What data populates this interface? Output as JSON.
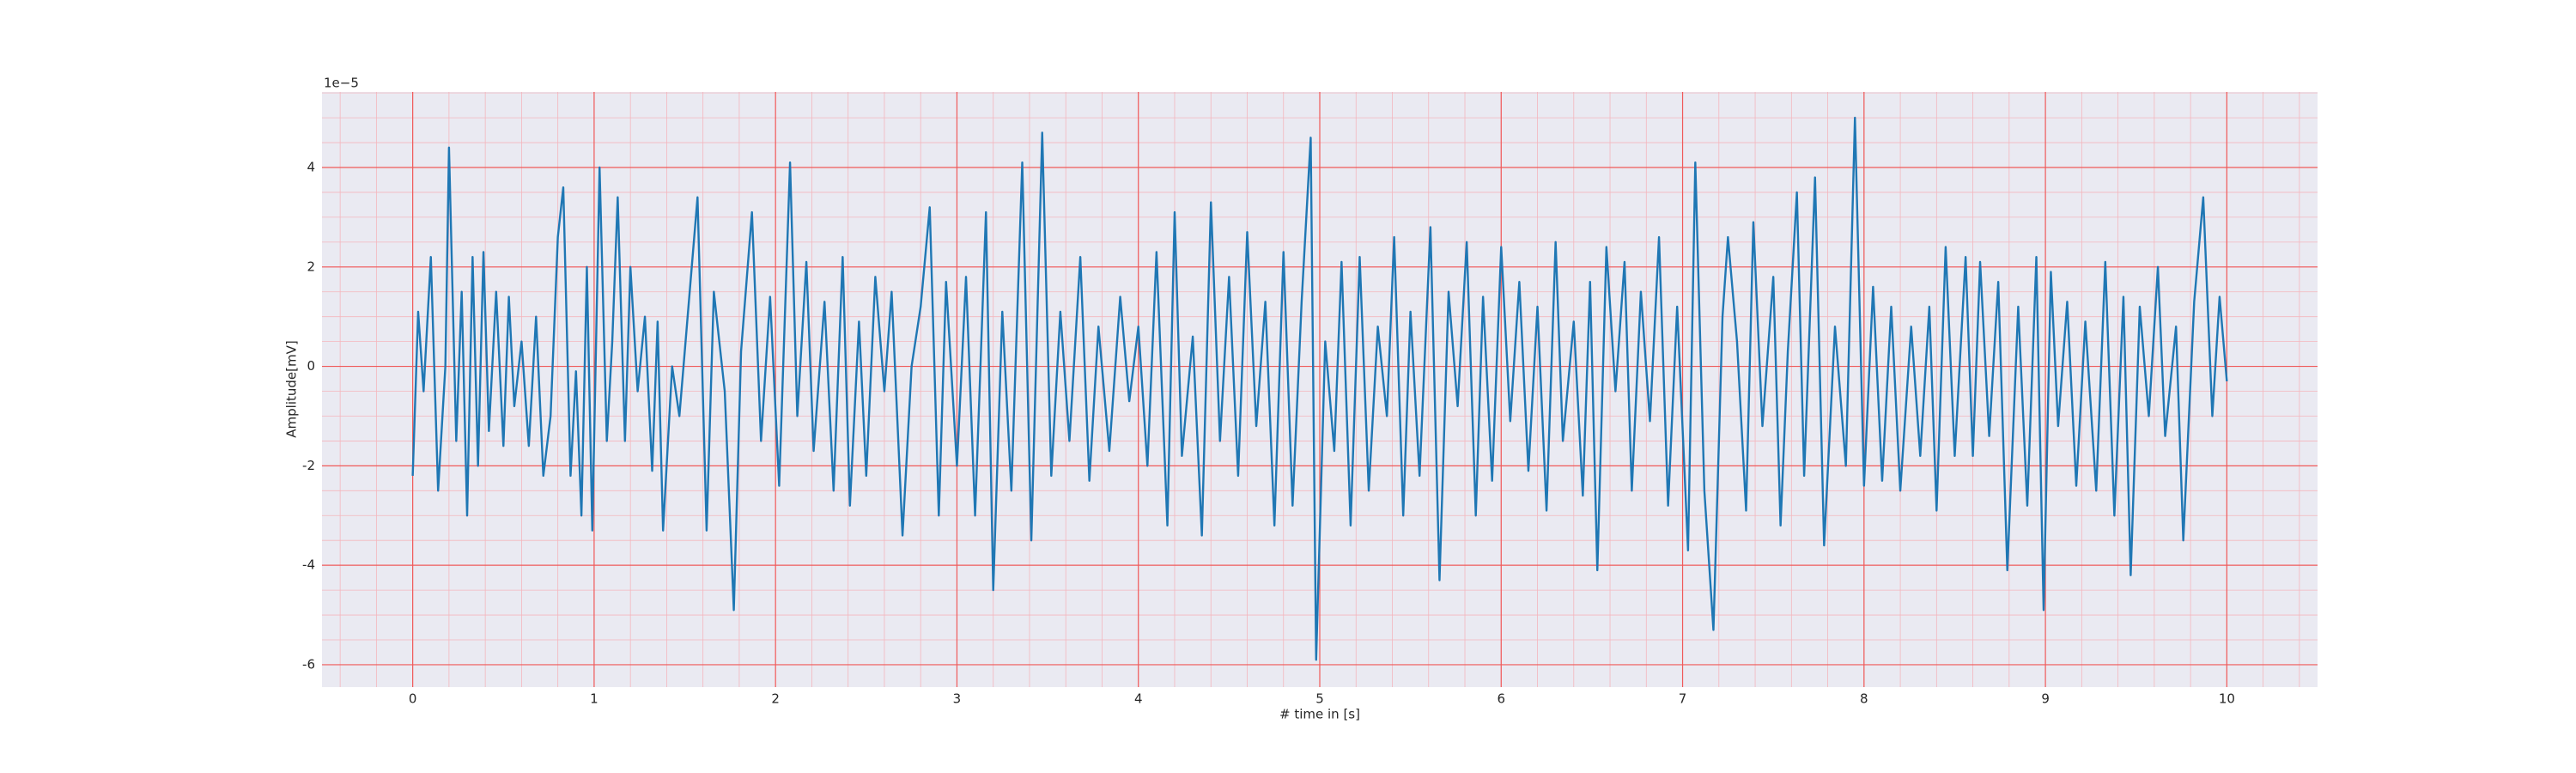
{
  "chart_data": {
    "type": "line",
    "xlabel": "# time in [s]",
    "ylabel": "Amplitude[mV]",
    "y_offset_label": "1e−5",
    "xlim": [
      -0.5,
      10.5
    ],
    "ylim": [
      -6.45,
      5.52
    ],
    "xticks": [
      0,
      1,
      2,
      3,
      4,
      5,
      6,
      7,
      8,
      9,
      10
    ],
    "yticks": [
      -6,
      -4,
      -2,
      0,
      2,
      4
    ],
    "grid": true,
    "minor_grid": true,
    "series": [
      {
        "color": "#1f77b4",
        "x": [
          0,
          0.03,
          0.06,
          0.1,
          0.14,
          0.18,
          0.2,
          0.24,
          0.27,
          0.3,
          0.33,
          0.36,
          0.39,
          0.42,
          0.46,
          0.5,
          0.53,
          0.56,
          0.6,
          0.64,
          0.68,
          0.72,
          0.76,
          0.8,
          0.83,
          0.87,
          0.9,
          0.93,
          0.96,
          0.99,
          1.03,
          1.07,
          1.1,
          1.13,
          1.17,
          1.2,
          1.24,
          1.28,
          1.32,
          1.35,
          1.38,
          1.43,
          1.47,
          1.52,
          1.57,
          1.62,
          1.66,
          1.72,
          1.77,
          1.81,
          1.87,
          1.92,
          1.97,
          2.02,
          2.08,
          2.12,
          2.17,
          2.21,
          2.27,
          2.32,
          2.37,
          2.41,
          2.46,
          2.5,
          2.55,
          2.6,
          2.64,
          2.7,
          2.75,
          2.8,
          2.85,
          2.9,
          2.94,
          3.0,
          3.05,
          3.1,
          3.16,
          3.2,
          3.25,
          3.3,
          3.36,
          3.41,
          3.47,
          3.52,
          3.57,
          3.62,
          3.68,
          3.73,
          3.78,
          3.84,
          3.9,
          3.95,
          4.0,
          4.05,
          4.1,
          4.16,
          4.2,
          4.24,
          4.3,
          4.35,
          4.4,
          4.45,
          4.5,
          4.55,
          4.6,
          4.65,
          4.7,
          4.75,
          4.8,
          4.85,
          4.9,
          4.95,
          4.98,
          5.03,
          5.08,
          5.12,
          5.17,
          5.22,
          5.27,
          5.32,
          5.37,
          5.41,
          5.46,
          5.5,
          5.55,
          5.61,
          5.66,
          5.71,
          5.76,
          5.81,
          5.86,
          5.9,
          5.95,
          6.0,
          6.05,
          6.1,
          6.15,
          6.2,
          6.25,
          6.3,
          6.34,
          6.4,
          6.45,
          6.49,
          6.53,
          6.58,
          6.63,
          6.68,
          6.72,
          6.77,
          6.82,
          6.87,
          6.92,
          6.97,
          7.03,
          7.07,
          7.12,
          7.17,
          7.22,
          7.25,
          7.3,
          7.35,
          7.39,
          7.44,
          7.5,
          7.54,
          7.58,
          7.63,
          7.67,
          7.73,
          7.78,
          7.84,
          7.9,
          7.95,
          8.0,
          8.05,
          8.1,
          8.15,
          8.2,
          8.26,
          8.31,
          8.36,
          8.4,
          8.45,
          8.5,
          8.56,
          8.6,
          8.64,
          8.69,
          8.74,
          8.79,
          8.85,
          8.9,
          8.95,
          8.99,
          9.03,
          9.07,
          9.12,
          9.17,
          9.22,
          9.28,
          9.33,
          9.38,
          9.43,
          9.47,
          9.52,
          9.57,
          9.62,
          9.66,
          9.72,
          9.76,
          9.82,
          9.87,
          9.92,
          9.96,
          10.0
        ],
        "values": [
          -2.2,
          1.1,
          -0.5,
          2.2,
          -2.5,
          0.0,
          4.4,
          -1.5,
          1.5,
          -3.0,
          2.2,
          -2.0,
          2.3,
          -1.3,
          1.5,
          -1.6,
          1.4,
          -0.8,
          0.5,
          -1.6,
          1.0,
          -2.2,
          -1.0,
          2.6,
          3.6,
          -2.2,
          -0.1,
          -3.0,
          2.0,
          -3.3,
          4.0,
          -1.5,
          0.5,
          3.4,
          -1.5,
          2.0,
          -0.5,
          1.0,
          -2.1,
          0.9,
          -3.3,
          0.0,
          -1.0,
          1.2,
          3.4,
          -3.3,
          1.5,
          -0.5,
          -4.9,
          0.3,
          3.1,
          -1.5,
          1.4,
          -2.4,
          4.1,
          -1.0,
          2.1,
          -1.7,
          1.3,
          -2.5,
          2.2,
          -2.8,
          0.9,
          -2.2,
          1.8,
          -0.5,
          1.5,
          -3.4,
          0.0,
          1.2,
          3.2,
          -3.0,
          1.7,
          -2.0,
          1.8,
          -3.0,
          3.1,
          -4.5,
          1.1,
          -2.5,
          4.1,
          -3.5,
          4.7,
          -2.2,
          1.1,
          -1.5,
          2.2,
          -2.3,
          0.8,
          -1.7,
          1.4,
          -0.7,
          0.8,
          -2.0,
          2.3,
          -3.2,
          3.1,
          -1.8,
          0.6,
          -3.4,
          3.3,
          -1.5,
          1.8,
          -2.2,
          2.7,
          -1.2,
          1.3,
          -3.2,
          2.3,
          -2.8,
          1.3,
          4.6,
          -5.9,
          0.5,
          -1.7,
          2.1,
          -3.2,
          2.2,
          -2.5,
          0.8,
          -1.0,
          2.6,
          -3.0,
          1.1,
          -2.2,
          2.8,
          -4.3,
          1.5,
          -0.8,
          2.5,
          -3.0,
          1.4,
          -2.3,
          2.4,
          -1.1,
          1.7,
          -2.1,
          1.2,
          -2.9,
          2.5,
          -1.5,
          0.9,
          -2.6,
          1.7,
          -4.1,
          2.4,
          -0.5,
          2.1,
          -2.5,
          1.5,
          -1.1,
          2.6,
          -2.8,
          1.2,
          -3.7,
          4.1,
          -2.5,
          -5.3,
          1.0,
          2.6,
          0.5,
          -2.9,
          2.9,
          -1.2,
          1.8,
          -3.2,
          0.3,
          3.5,
          -2.2,
          3.8,
          -3.6,
          0.8,
          -2.0,
          5.0,
          -2.4,
          1.6,
          -2.3,
          1.2,
          -2.5,
          0.8,
          -1.8,
          1.2,
          -2.9,
          2.4,
          -1.8,
          2.2,
          -1.8,
          2.1,
          -1.4,
          1.7,
          -4.1,
          1.2,
          -2.8,
          2.2,
          -4.9,
          1.9,
          -1.2,
          1.3,
          -2.4,
          0.9,
          -2.5,
          2.1,
          -3.0,
          1.4,
          -4.2,
          1.2,
          -1.0,
          2.0,
          -1.4,
          0.8,
          -3.5,
          1.3,
          3.4,
          -1.0,
          1.4,
          -0.3
        ]
      }
    ]
  }
}
